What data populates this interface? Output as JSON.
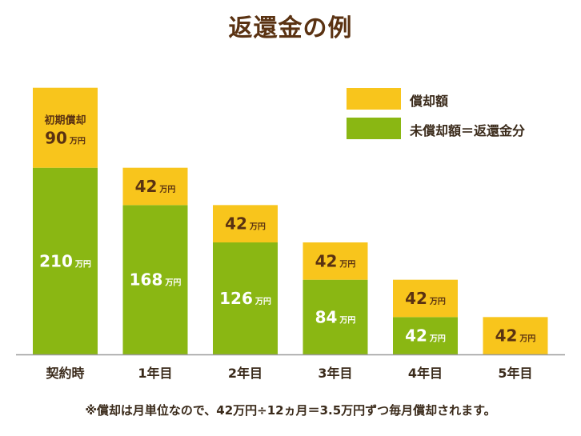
{
  "title": "返還金の例",
  "legend": {
    "items": [
      {
        "label": "償却額",
        "color": "#f8c51c"
      },
      {
        "label": "未償却額＝返還金分",
        "color": "#8ab713"
      }
    ]
  },
  "chart_data": {
    "type": "bar",
    "stacked": true,
    "unit": "万円",
    "categories": [
      "契約時",
      "1年目",
      "2年目",
      "3年目",
      "4年目",
      "5年目"
    ],
    "series": [
      {
        "name": "未償却額＝返還金分",
        "color": "#8ab713",
        "values": [
          210,
          168,
          126,
          84,
          42,
          0
        ]
      },
      {
        "name": "償却額",
        "color": "#f8c51c",
        "values": [
          90,
          42,
          42,
          42,
          42,
          42
        ]
      }
    ],
    "first_top_label": "初期償却",
    "ylim": [
      0,
      300
    ],
    "legend_position": "top-right",
    "grid": false
  },
  "note": "※償却は月単位なので、42万円÷12ヵ月＝3.5万円ずつ毎月償却されます。"
}
